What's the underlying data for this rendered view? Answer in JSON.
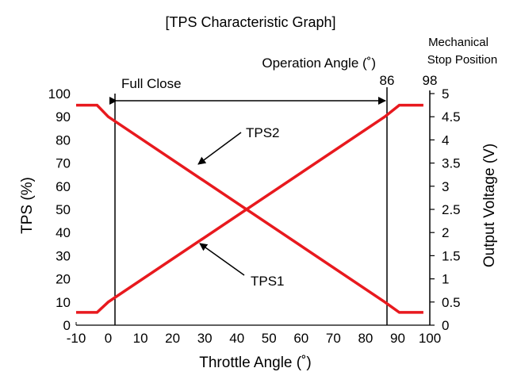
{
  "chart_data": {
    "type": "line",
    "title": "[TPS Characteristic Graph]",
    "xlabel": "Throttle Angle (˚)",
    "ylabel_left": "TPS (%)",
    "ylabel_right": "Output Voltage (V)",
    "xlim": [
      -10,
      100
    ],
    "ylim_left": [
      0,
      100
    ],
    "ylim_right": [
      0,
      5
    ],
    "x_ticks": [
      "-10",
      "0",
      "10",
      "20",
      "30",
      "40",
      "50",
      "60",
      "70",
      "80",
      "90",
      "100"
    ],
    "y_ticks_left": [
      "0",
      "10",
      "20",
      "30",
      "40",
      "50",
      "60",
      "70",
      "80",
      "90",
      "100"
    ],
    "y_ticks_right": [
      "0",
      "0.5",
      "1",
      "1.5",
      "2",
      "2.5",
      "3",
      "3.5",
      "4",
      "4.5",
      "5"
    ],
    "series": [
      {
        "name": "TPS1",
        "x": [
          -10,
          -3.5,
          0,
          86,
          90.5,
          98
        ],
        "y": [
          5.5,
          5.5,
          10,
          90,
          95,
          95
        ]
      },
      {
        "name": "TPS2",
        "x": [
          -10,
          -3.5,
          0,
          86,
          90.5,
          98
        ],
        "y": [
          95,
          95,
          90,
          10,
          5.5,
          5.5
        ]
      }
    ],
    "series_color": "#e8191e",
    "vertical_markers": [
      {
        "x": 0,
        "label": "Full Close"
      },
      {
        "x": 86,
        "label": "86"
      },
      {
        "x": 98,
        "label": "98"
      }
    ],
    "annotations": {
      "operation_angle": "Operation Angle (˚)",
      "mechanical_line1": "Mechanical",
      "mechanical_line2": "Stop Position",
      "tps1_label": "TPS1",
      "tps2_label": "TPS2"
    }
  }
}
